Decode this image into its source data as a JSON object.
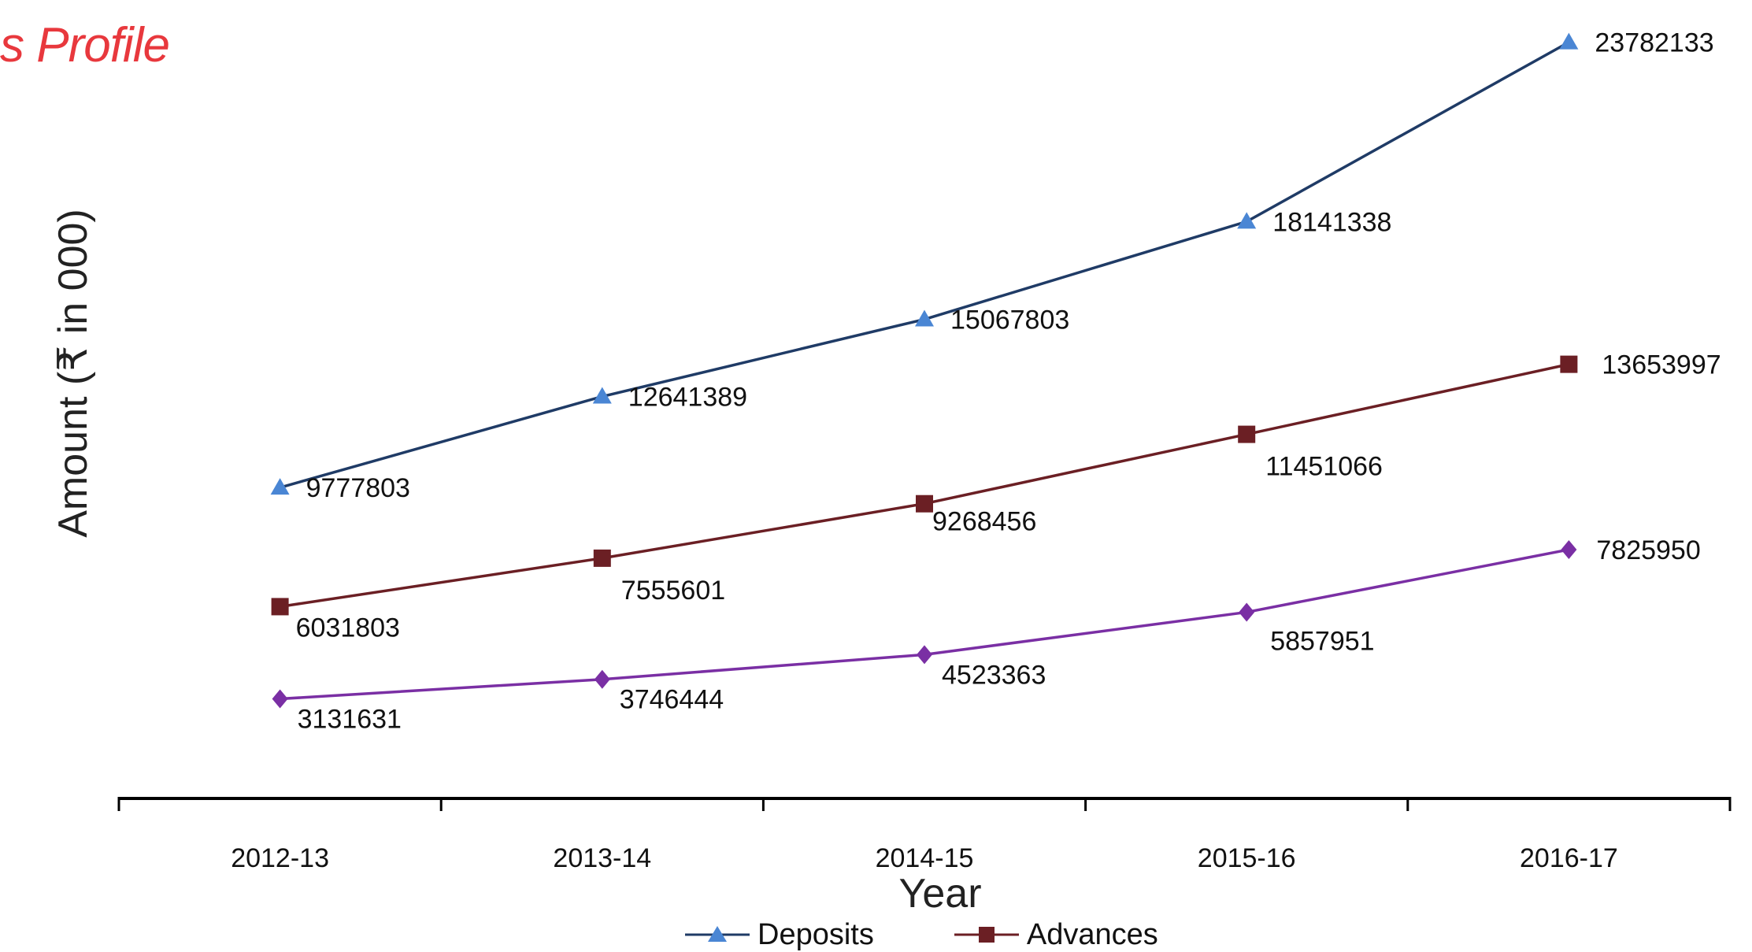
{
  "title": "s Profile",
  "chart_data": {
    "type": "line",
    "categories": [
      "2012-13",
      "2013-14",
      "2014-15",
      "2015-16",
      "2016-17"
    ],
    "xlabel": "Year",
    "ylabel": "Amount (₹ in 000)",
    "ylim": [
      0,
      28000000
    ],
    "grid": false,
    "legend_placement": "bottom",
    "series": [
      {
        "name": "Deposits",
        "values": [
          9777803,
          12641389,
          15067803,
          18141338,
          23782133
        ],
        "labels": [
          "9777803",
          "12641389",
          "15067803",
          "18141338",
          "23782133"
        ],
        "color": "#1f3b66",
        "marker": "triangle",
        "marker_color": "#4a86d4"
      },
      {
        "name": "Advances",
        "values": [
          6031803,
          7555601,
          9268456,
          11451066,
          13653997
        ],
        "labels": [
          "6031803",
          "7555601",
          "9268456",
          "11451066",
          "13653997"
        ],
        "color": "#6b1f24",
        "marker": "square",
        "marker_color": "#6b1f24"
      },
      {
        "values": [
          3131631,
          3746444,
          4523363,
          5857951,
          7825950
        ],
        "labels": [
          "3131631",
          "3746444",
          "4523363",
          "5857951",
          "7825950"
        ],
        "color": "#7a2fa4",
        "marker": "diamond",
        "marker_color": "#7a2fa4"
      }
    ]
  }
}
